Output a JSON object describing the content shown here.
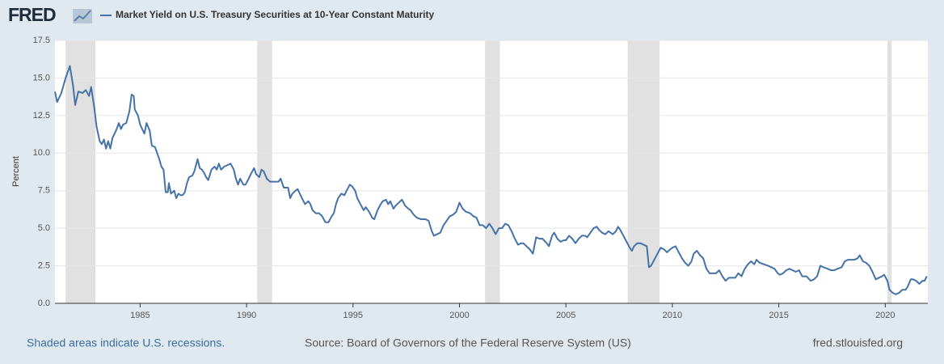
{
  "header": {
    "logo": "FRED"
  },
  "chart_data": {
    "type": "line",
    "y_label": "Percent",
    "x": [
      1981.0,
      1981.1,
      1981.3,
      1981.5,
      1981.7,
      1981.85,
      1981.95,
      1982.1,
      1982.3,
      1982.45,
      1982.6,
      1982.7,
      1982.85,
      1982.95,
      1983.1,
      1983.2,
      1983.3,
      1983.4,
      1983.5,
      1983.6,
      1983.7,
      1983.9,
      1984.0,
      1984.1,
      1984.2,
      1984.35,
      1984.5,
      1984.6,
      1984.7,
      1984.75,
      1984.9,
      1985.0,
      1985.1,
      1985.2,
      1985.3,
      1985.45,
      1985.55,
      1985.7,
      1985.8,
      1985.9,
      1986.0,
      1986.1,
      1986.2,
      1986.3,
      1986.35,
      1986.45,
      1986.6,
      1986.7,
      1986.8,
      1986.9,
      1987.0,
      1987.1,
      1987.2,
      1987.3,
      1987.45,
      1987.55,
      1987.7,
      1987.8,
      1987.9,
      1988.0,
      1988.1,
      1988.2,
      1988.35,
      1988.5,
      1988.6,
      1988.7,
      1988.8,
      1988.95,
      1989.1,
      1989.25,
      1989.4,
      1989.5,
      1989.6,
      1989.7,
      1989.85,
      1989.95,
      1990.1,
      1990.2,
      1990.35,
      1990.45,
      1990.6,
      1990.7,
      1990.8,
      1990.95,
      1991.1,
      1991.3,
      1991.5,
      1991.6,
      1991.75,
      1991.95,
      1992.05,
      1992.15,
      1992.3,
      1992.4,
      1992.6,
      1992.75,
      1992.9,
      1993.0,
      1993.1,
      1993.25,
      1993.4,
      1993.55,
      1993.7,
      1993.85,
      1994.0,
      1994.1,
      1994.2,
      1994.3,
      1994.45,
      1994.6,
      1994.7,
      1994.85,
      1994.95,
      1995.1,
      1995.2,
      1995.35,
      1995.5,
      1995.6,
      1995.75,
      1995.9,
      1996.0,
      1996.15,
      1996.3,
      1996.4,
      1996.55,
      1996.65,
      1996.75,
      1996.9,
      1997.0,
      1997.15,
      1997.3,
      1997.45,
      1997.6,
      1997.7,
      1997.85,
      1998.0,
      1998.2,
      1998.4,
      1998.55,
      1998.7,
      1998.8,
      1998.95,
      1999.1,
      1999.25,
      1999.4,
      1999.55,
      1999.7,
      1999.85,
      2000.0,
      2000.15,
      2000.3,
      2000.5,
      2000.65,
      2000.8,
      2000.95,
      2001.1,
      2001.25,
      2001.4,
      2001.55,
      2001.7,
      2001.85,
      2002.0,
      2002.15,
      2002.3,
      2002.45,
      2002.6,
      2002.75,
      2002.9,
      2003.0,
      2003.15,
      2003.3,
      2003.45,
      2003.6,
      2003.75,
      2003.9,
      2004.1,
      2004.2,
      2004.35,
      2004.45,
      2004.6,
      2004.75,
      2004.9,
      2005.0,
      2005.15,
      2005.3,
      2005.45,
      2005.6,
      2005.75,
      2005.9,
      2006.0,
      2006.15,
      2006.3,
      2006.45,
      2006.55,
      2006.7,
      2006.85,
      2007.0,
      2007.2,
      2007.35,
      2007.45,
      2007.55,
      2007.7,
      2007.85,
      2008.0,
      2008.1,
      2008.2,
      2008.35,
      2008.5,
      2008.65,
      2008.8,
      2008.9,
      2009.0,
      2009.15,
      2009.3,
      2009.45,
      2009.6,
      2009.75,
      2009.9,
      2010.0,
      2010.15,
      2010.3,
      2010.45,
      2010.6,
      2010.75,
      2010.9,
      2011.0,
      2011.15,
      2011.3,
      2011.45,
      2011.6,
      2011.75,
      2011.9,
      2012.05,
      2012.2,
      2012.35,
      2012.5,
      2012.65,
      2012.8,
      2012.95,
      2013.1,
      2013.25,
      2013.4,
      2013.55,
      2013.7,
      2013.85,
      2013.95,
      2014.1,
      2014.3,
      2014.5,
      2014.65,
      2014.8,
      2014.95,
      2015.05,
      2015.2,
      2015.35,
      2015.5,
      2015.65,
      2015.8,
      2015.95,
      2016.1,
      2016.3,
      2016.5,
      2016.65,
      2016.8,
      2016.95,
      2017.1,
      2017.3,
      2017.45,
      2017.6,
      2017.75,
      2017.95,
      2018.1,
      2018.25,
      2018.4,
      2018.55,
      2018.7,
      2018.8,
      2018.95,
      2019.1,
      2019.25,
      2019.4,
      2019.55,
      2019.7,
      2019.85,
      2019.95,
      2020.1,
      2020.2,
      2020.35,
      2020.5,
      2020.65,
      2020.8,
      2020.95,
      2021.05,
      2021.2,
      2021.3,
      2021.45,
      2021.6,
      2021.75,
      2021.85,
      2021.95
    ],
    "series": [
      {
        "name": "Market Yield on U.S. Treasury Securities at 10-Year Constant Maturity",
        "color": "#4572a7",
        "values": [
          14.1,
          13.4,
          14.0,
          15.0,
          15.8,
          14.5,
          13.2,
          14.1,
          14.0,
          14.2,
          13.8,
          14.4,
          13.0,
          11.8,
          10.8,
          10.6,
          10.9,
          10.3,
          10.8,
          10.3,
          11.0,
          11.6,
          12.0,
          11.6,
          11.9,
          12.0,
          12.8,
          13.9,
          13.8,
          12.9,
          12.5,
          11.9,
          11.6,
          11.3,
          12.0,
          11.5,
          10.5,
          10.4,
          10.0,
          9.6,
          9.1,
          8.9,
          7.4,
          7.4,
          8.0,
          7.3,
          7.5,
          7.0,
          7.3,
          7.2,
          7.2,
          7.4,
          8.0,
          8.4,
          8.5,
          8.8,
          9.6,
          9.0,
          8.9,
          8.7,
          8.4,
          8.2,
          8.9,
          9.1,
          8.9,
          9.3,
          8.9,
          9.1,
          9.2,
          9.3,
          8.9,
          8.3,
          7.9,
          8.3,
          7.9,
          7.9,
          8.3,
          8.6,
          9.0,
          8.6,
          8.4,
          8.9,
          8.8,
          8.3,
          8.1,
          8.1,
          8.1,
          8.3,
          7.7,
          7.7,
          7.0,
          7.3,
          7.5,
          7.6,
          7.0,
          6.6,
          6.8,
          6.6,
          6.2,
          6.0,
          6.0,
          5.8,
          5.4,
          5.4,
          5.8,
          6.0,
          6.6,
          7.0,
          7.3,
          7.2,
          7.5,
          7.9,
          7.8,
          7.5,
          7.0,
          6.6,
          6.2,
          6.4,
          6.1,
          5.7,
          5.6,
          6.2,
          6.6,
          6.8,
          6.9,
          6.6,
          6.8,
          6.3,
          6.5,
          6.7,
          6.9,
          6.5,
          6.3,
          6.2,
          5.9,
          5.7,
          5.6,
          5.6,
          5.5,
          4.8,
          4.5,
          4.6,
          4.7,
          5.2,
          5.5,
          5.8,
          5.9,
          6.1,
          6.7,
          6.3,
          6.1,
          6.0,
          5.8,
          5.7,
          5.2,
          5.2,
          5.0,
          5.3,
          5.0,
          4.6,
          5.0,
          5.0,
          5.3,
          5.2,
          4.8,
          4.3,
          3.9,
          4.0,
          4.0,
          3.8,
          3.6,
          3.3,
          4.4,
          4.3,
          4.3,
          4.0,
          3.8,
          4.5,
          4.7,
          4.3,
          4.1,
          4.2,
          4.2,
          4.5,
          4.3,
          4.0,
          4.3,
          4.5,
          4.5,
          4.4,
          4.7,
          5.0,
          5.1,
          4.9,
          4.7,
          4.6,
          4.8,
          4.6,
          4.8,
          5.1,
          4.9,
          4.5,
          4.1,
          3.7,
          3.5,
          3.8,
          4.0,
          4.0,
          3.9,
          3.8,
          2.4,
          2.5,
          2.9,
          3.3,
          3.7,
          3.6,
          3.4,
          3.6,
          3.7,
          3.8,
          3.4,
          3.0,
          2.7,
          2.5,
          2.8,
          3.3,
          3.5,
          3.2,
          3.0,
          2.3,
          2.0,
          2.0,
          2.0,
          2.2,
          1.8,
          1.5,
          1.7,
          1.7,
          1.7,
          2.0,
          1.8,
          2.3,
          2.6,
          2.8,
          2.6,
          2.9,
          2.7,
          2.6,
          2.5,
          2.4,
          2.3,
          2.0,
          1.9,
          2.0,
          2.2,
          2.3,
          2.2,
          2.1,
          2.2,
          1.8,
          1.8,
          1.5,
          1.6,
          1.8,
          2.5,
          2.4,
          2.3,
          2.2,
          2.2,
          2.3,
          2.4,
          2.8,
          2.9,
          2.9,
          2.9,
          3.0,
          3.2,
          2.8,
          2.7,
          2.5,
          2.1,
          1.6,
          1.7,
          1.8,
          1.9,
          1.5,
          0.9,
          0.7,
          0.6,
          0.7,
          0.9,
          0.9,
          1.1,
          1.6,
          1.6,
          1.5,
          1.3,
          1.5,
          1.5,
          1.8
        ]
      }
    ],
    "recessions": [
      [
        1981.5,
        1982.9
      ],
      [
        1990.5,
        1991.2
      ],
      [
        2001.2,
        2001.9
      ],
      [
        2007.9,
        2009.4
      ],
      [
        2020.1,
        2020.3
      ]
    ],
    "recession_color": "#e1e1e1",
    "xlim": [
      1981.0,
      2022.0
    ],
    "xticks": [
      1985,
      1990,
      1995,
      2000,
      2005,
      2010,
      2015,
      2020
    ],
    "ylim": [
      0,
      17.5
    ],
    "yticks": [
      {
        "value": 0,
        "label": "0.0"
      },
      2.5,
      {
        "value": 5,
        "label": "5.0"
      },
      7.5,
      {
        "value": 10,
        "label": "10.0"
      },
      12.5,
      {
        "value": 15,
        "label": "15.0"
      },
      17.5
    ],
    "grid": true
  },
  "footer": {
    "recession_note": "Shaded areas indicate U.S. recessions.",
    "source": "Source: Board of Governors of the Federal Reserve System (US)",
    "site": "fred.stlouisfed.org"
  }
}
